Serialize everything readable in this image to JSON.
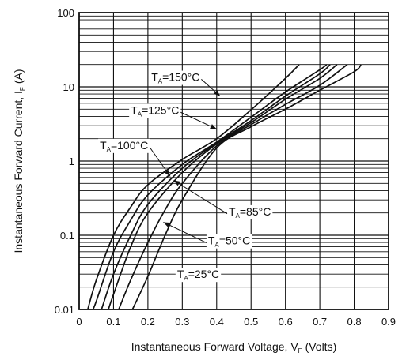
{
  "chart_data": {
    "type": "line",
    "xlabel": "Instantaneous Forward Voltage, V",
    "xlabel_sub": "F",
    "xlabel_unit": "(Volts)",
    "ylabel": "Instantaneous Forward Current, I",
    "ylabel_sub": "F",
    "ylabel_unit": "(A)",
    "x_scale": "linear",
    "y_scale": "log",
    "xlim": [
      0,
      0.9
    ],
    "ylim": [
      0.01,
      100
    ],
    "x_ticks": [
      0,
      0.1,
      0.2,
      0.3,
      0.4,
      0.5,
      0.6,
      0.7,
      0.8,
      0.9
    ],
    "x_tick_labels": [
      "0",
      "0.1",
      "0.2",
      "0.3",
      "0.4",
      "0.5",
      "0.6",
      "0.7",
      "0.8",
      "0.9"
    ],
    "y_ticks": [
      0.01,
      0.1,
      1,
      10,
      100
    ],
    "y_tick_labels": [
      "0.01",
      "0.1",
      "1",
      "10",
      "100"
    ],
    "grid": true,
    "legend": "none",
    "line_color": "#111111",
    "series": [
      {
        "name": "T_A=150°C",
        "label_prefix": "T",
        "label_sub": "A",
        "label_suffix": "=150°C",
        "x": [
          0.025,
          0.05,
          0.1,
          0.15,
          0.2,
          0.3,
          0.4,
          0.5,
          0.6,
          0.64
        ],
        "y": [
          0.01,
          0.025,
          0.1,
          0.24,
          0.48,
          1.05,
          2.0,
          4.9,
          13.0,
          20.0
        ]
      },
      {
        "name": "T_A=125°C",
        "label_prefix": "T",
        "label_sub": "A",
        "label_suffix": "=125°C",
        "x": [
          0.04,
          0.05,
          0.1,
          0.15,
          0.2,
          0.3,
          0.4,
          0.5,
          0.6,
          0.7,
          0.72
        ],
        "y": [
          0.01,
          0.013,
          0.06,
          0.16,
          0.35,
          0.9,
          1.8,
          3.9,
          8.5,
          17.0,
          20.0
        ]
      },
      {
        "name": "T_A=100°C",
        "label_prefix": "T",
        "label_sub": "A",
        "label_suffix": "=100°C",
        "x": [
          0.065,
          0.1,
          0.15,
          0.2,
          0.3,
          0.4,
          0.5,
          0.6,
          0.7,
          0.73
        ],
        "y": [
          0.01,
          0.03,
          0.1,
          0.26,
          0.8,
          1.75,
          3.5,
          7.5,
          15.0,
          20.0
        ]
      },
      {
        "name": "T_A=85°C",
        "label_prefix": "T",
        "label_sub": "A",
        "label_suffix": "=85°C",
        "x": [
          0.085,
          0.1,
          0.15,
          0.2,
          0.3,
          0.4,
          0.5,
          0.6,
          0.7,
          0.75
        ],
        "y": [
          0.01,
          0.016,
          0.07,
          0.2,
          0.7,
          1.7,
          3.3,
          6.8,
          13.0,
          20.0
        ]
      },
      {
        "name": "T_A=50°C",
        "label_prefix": "T",
        "label_sub": "A",
        "label_suffix": "=50°C",
        "x": [
          0.115,
          0.15,
          0.2,
          0.25,
          0.3,
          0.4,
          0.5,
          0.6,
          0.7,
          0.78
        ],
        "y": [
          0.01,
          0.025,
          0.08,
          0.22,
          0.5,
          1.6,
          3.1,
          5.8,
          10.5,
          20.0
        ]
      },
      {
        "name": "T_A=25°C",
        "label_prefix": "T",
        "label_sub": "A",
        "label_suffix": "=25°C",
        "x": [
          0.155,
          0.2,
          0.25,
          0.3,
          0.4,
          0.5,
          0.6,
          0.7,
          0.8,
          0.82
        ],
        "y": [
          0.01,
          0.028,
          0.1,
          0.3,
          1.5,
          2.9,
          5.0,
          9.0,
          16.0,
          20.0
        ]
      }
    ],
    "annotations": [
      {
        "series": 0,
        "text_x": 0.21,
        "text_y": 12.0,
        "arrow_to_x": 0.41,
        "arrow_to_y": 7.5
      },
      {
        "series": 1,
        "text_x": 0.15,
        "text_y": 4.3,
        "arrow_to_x": 0.4,
        "arrow_to_y": 2.7
      },
      {
        "series": 2,
        "text_x": 0.06,
        "text_y": 1.45,
        "arrow_to_x": 0.265,
        "arrow_to_y": 0.62
      },
      {
        "series": 3,
        "text_x": 0.435,
        "text_y": 0.185,
        "arrow_to_x": 0.275,
        "arrow_to_y": 0.55
      },
      {
        "series": 4,
        "text_x": 0.375,
        "text_y": 0.075,
        "arrow_to_x": 0.245,
        "arrow_to_y": 0.15
      },
      {
        "series": 5,
        "text_x": 0.285,
        "text_y": 0.0265,
        "arrow_to_x": 0.0,
        "arrow_to_y": 0.0
      }
    ]
  }
}
